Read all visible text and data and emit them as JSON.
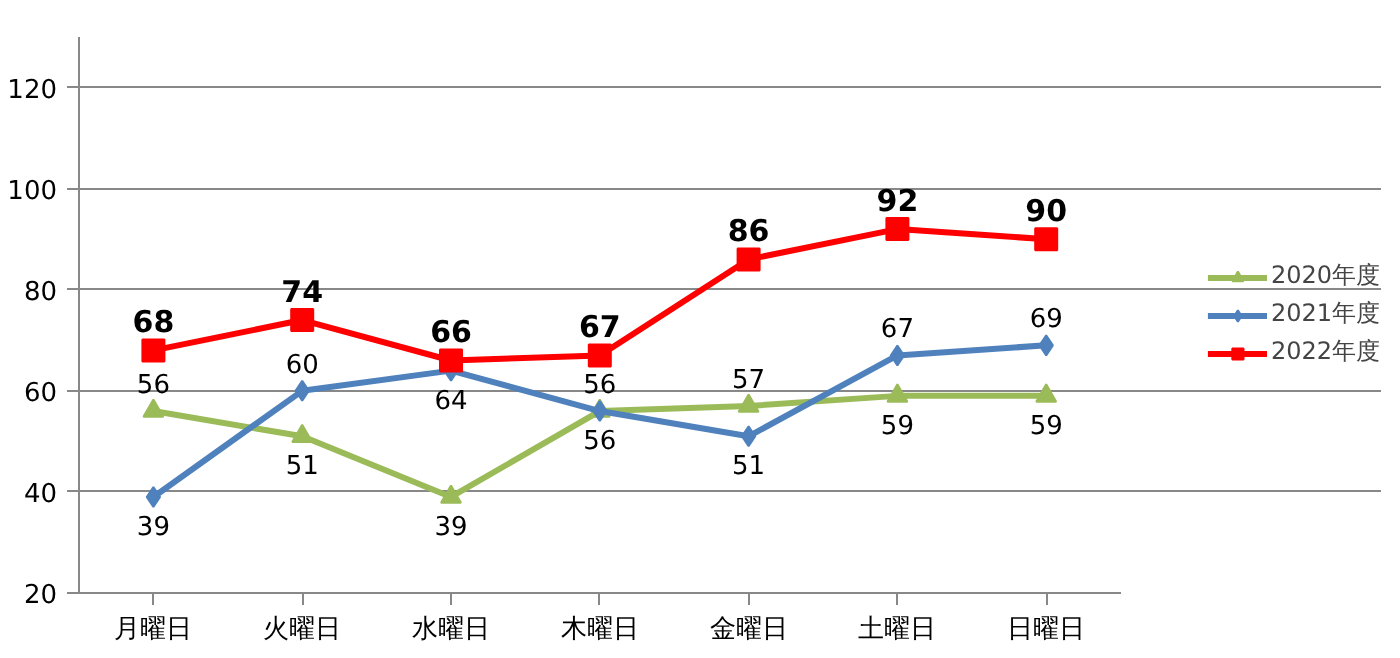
{
  "chart_data": {
    "type": "line",
    "categories": [
      "月曜日",
      "火曜日",
      "水曜日",
      "木曜日",
      "金曜日",
      "土曜日",
      "日曜日"
    ],
    "series": [
      {
        "name": "2020年度",
        "color": "#9bbb59",
        "values": [
          56,
          51,
          39,
          56,
          57,
          59,
          59
        ],
        "marker": "triangle"
      },
      {
        "name": "2021年度",
        "color": "#4f81bd",
        "values": [
          39,
          60,
          64,
          56,
          51,
          67,
          69
        ],
        "marker": "diamond"
      },
      {
        "name": "2022年度",
        "color": "#ff0000",
        "values": [
          68,
          74,
          66,
          67,
          86,
          92,
          90
        ],
        "marker": "square"
      }
    ],
    "ylim": [
      20,
      130
    ],
    "yticks": [
      20,
      40,
      60,
      80,
      100,
      120
    ],
    "grid": "y",
    "legend": "right",
    "data_labels": true,
    "line_style": "solid"
  }
}
